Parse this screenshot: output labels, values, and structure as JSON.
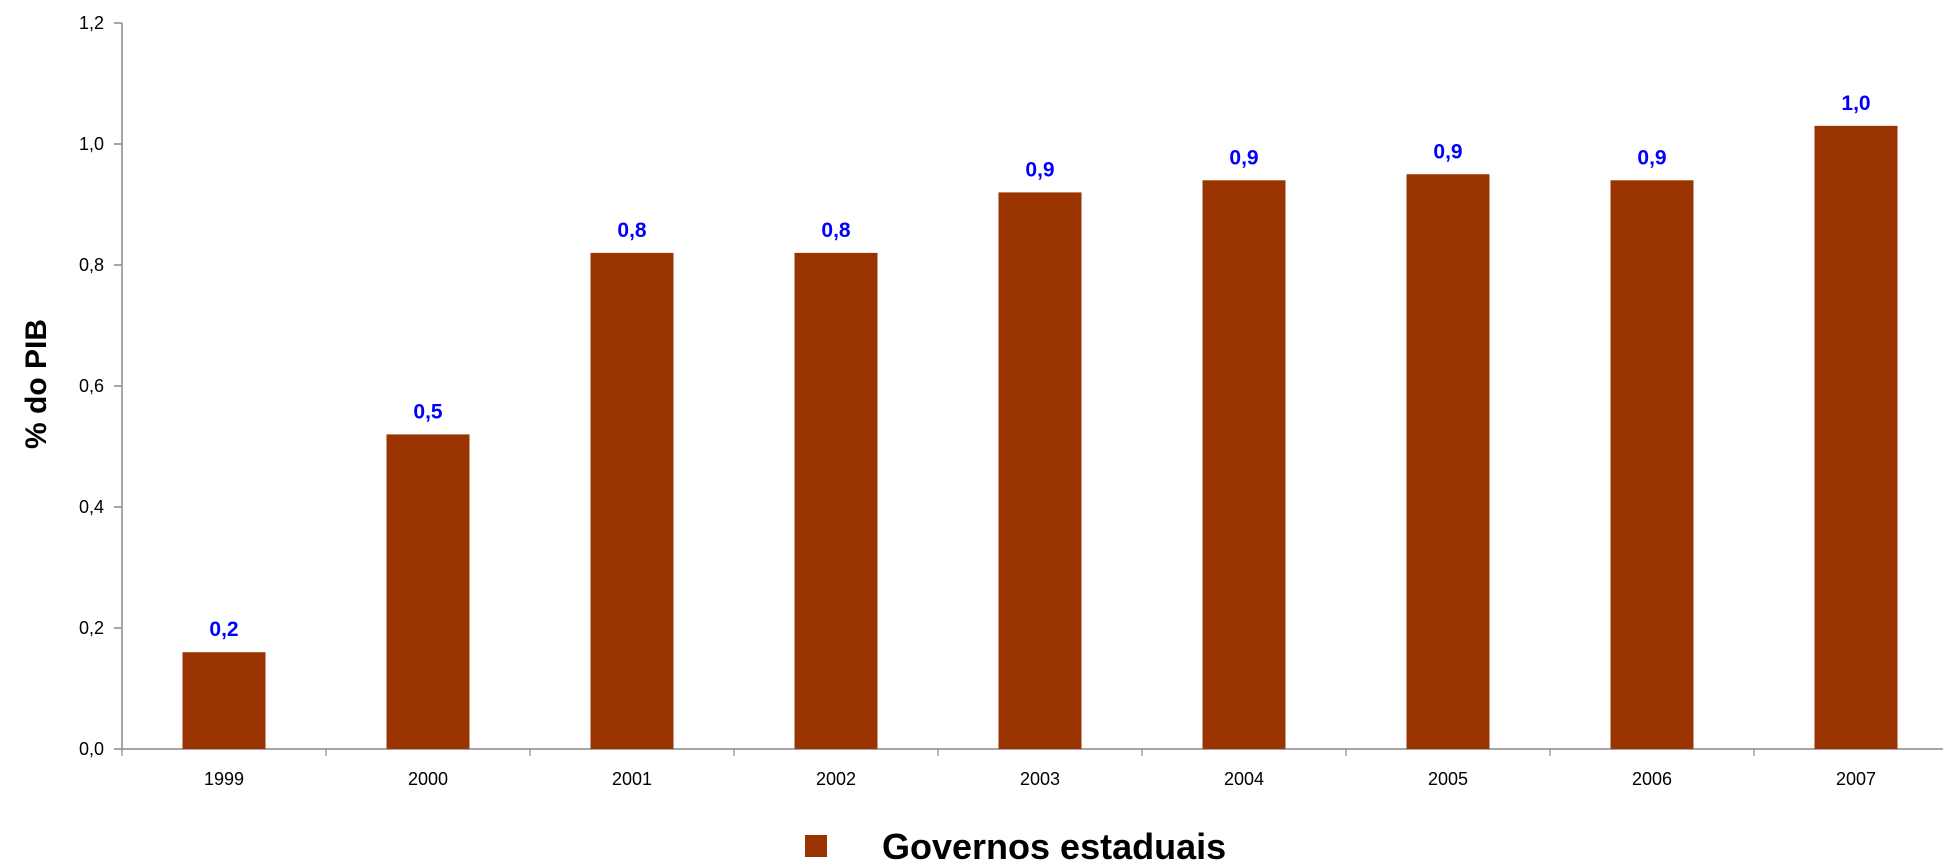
{
  "chart_data": {
    "type": "bar",
    "categories": [
      "1999",
      "2000",
      "2001",
      "2002",
      "2003",
      "2004",
      "2005",
      "2006",
      "2007"
    ],
    "series": [
      {
        "name": "Governos estaduais",
        "values": [
          0.16,
          0.52,
          0.82,
          0.82,
          0.92,
          0.94,
          0.95,
          0.94,
          1.03
        ],
        "data_labels": [
          "0,2",
          "0,5",
          "0,8",
          "0,8",
          "0,9",
          "0,9",
          "0,9",
          "0,9",
          "1,0"
        ]
      }
    ],
    "ylabel": "% do PIB",
    "ylim": [
      0,
      1.2
    ],
    "yticks": [
      0,
      0.2,
      0.4,
      0.6,
      0.8,
      1.0,
      1.2
    ],
    "ytick_labels": [
      "0,0",
      "0,2",
      "0,4",
      "0,6",
      "0,8",
      "1,0",
      "1,2"
    ],
    "grid": false,
    "legend": {
      "position": "bottom-center",
      "entries": [
        "Governos estaduais"
      ]
    },
    "colors": {
      "bar": "#993300",
      "data_label": "#0000ff",
      "axis": "#888888"
    }
  }
}
